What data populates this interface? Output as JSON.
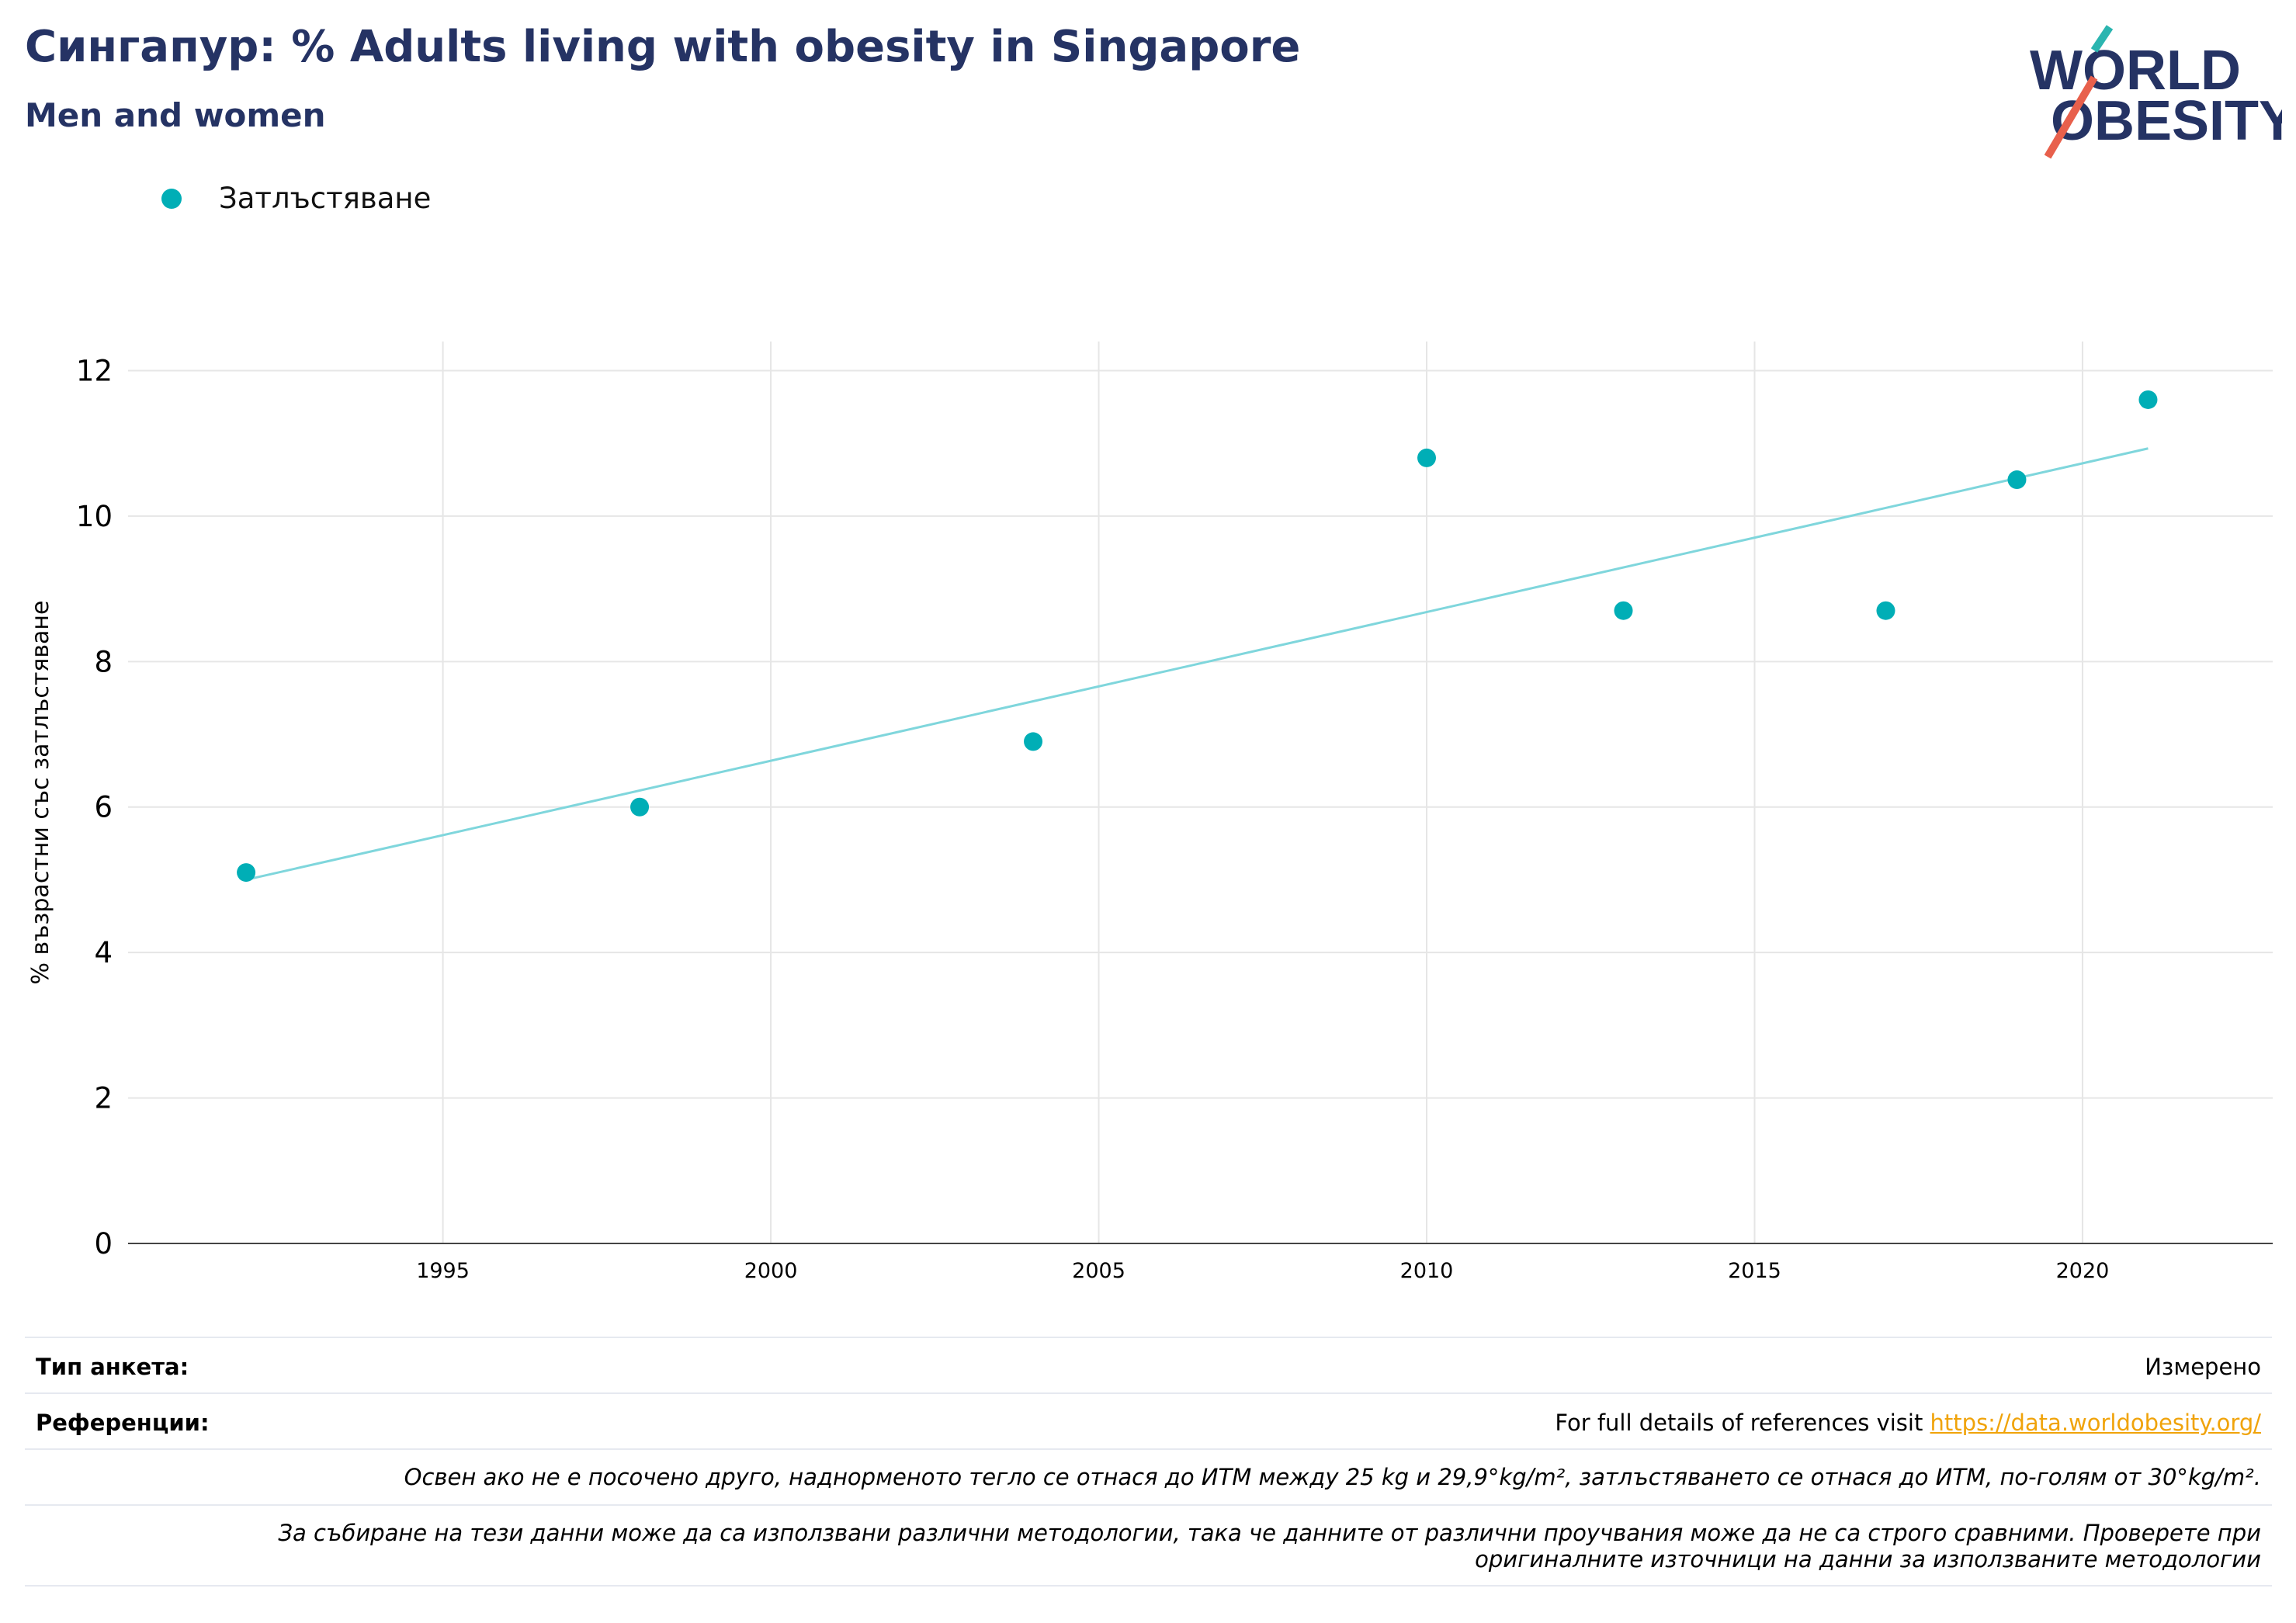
{
  "header": {
    "title": "Сингапур: % Adults living with obesity in Singapore",
    "subtitle": "Men and women"
  },
  "logo": {
    "line1": "WORLD",
    "line2": "OBESITY"
  },
  "legend": {
    "label": "Затлъстяване",
    "color": "#00aeb6"
  },
  "colors": {
    "series": "#00aeb6",
    "trend": "#7fd6dc",
    "title": "#253364",
    "link": "#f0a30a"
  },
  "chart_data": {
    "type": "scatter",
    "ylabel": "% възрастни със затлъстяване",
    "xlabel": "",
    "xlim": [
      1990.2,
      2022.9
    ],
    "ylim": [
      0,
      12.4
    ],
    "x_ticks": [
      1995,
      2000,
      2005,
      2010,
      2015,
      2020
    ],
    "y_ticks": [
      0,
      2,
      4,
      6,
      8,
      10,
      12
    ],
    "grid": true,
    "series": [
      {
        "name": "Затлъстяване",
        "x": [
          1992,
          1998,
          2004,
          2010,
          2013,
          2017,
          2019,
          2021
        ],
        "y": [
          5.1,
          6.0,
          6.9,
          10.8,
          8.7,
          8.7,
          10.5,
          11.6
        ]
      }
    ],
    "trendline": {
      "x": [
        1992,
        2021
      ],
      "y": [
        5.0,
        10.93
      ]
    }
  },
  "footer": {
    "survey_label": "Тип анкета:",
    "survey_value": "Измерено",
    "references_label": "Референции:",
    "references_text": "For full details of references visit ",
    "references_link": "https://data.worldobesity.org/",
    "note1": "Освен ако не е посочено друго, наднорменото тегло се отнася до ИТМ между 25 kg и 29,9°kg/m², затлъстяването се отнася до ИТМ, по-голям от 30°kg/m².",
    "note2_line1": "За събиране на тези данни може да са използвани различни методологии, така че данните от различни проучвания може да не са строго сравними. Проверете при",
    "note2_line2": "оригиналните източници на данни за използваните методологии"
  }
}
